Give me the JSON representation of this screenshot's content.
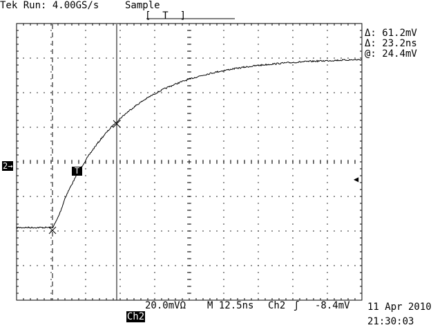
{
  "header": {
    "status": "Tek Run: 4.00GS/s",
    "mode": "Sample",
    "record_marker": "[  T  ]"
  },
  "readouts": {
    "delta_v": "Δ: 61.2mV",
    "delta_t": "Δ: 23.2ns",
    "at_v": "@: 24.4mV"
  },
  "markers": {
    "channel": "2→",
    "trigger_pos": "T",
    "trigger_level": "◀"
  },
  "footer": {
    "channel": "Ch2",
    "volts_div": "20.0mVΩ",
    "timebase": "M 12.5ns",
    "trigger_source": "Ch2",
    "trigger_slope": "ʃ",
    "trigger_level": "-8.4mV",
    "date": "11 Apr 2010",
    "time": "21:30:03"
  },
  "waveform": {
    "channel": "Ch2",
    "colors": {
      "trace": "#000000",
      "grid": "#000000",
      "background": "#ffffff"
    },
    "divisions": {
      "x": 10,
      "y": 8
    },
    "baseline_div": -1.9,
    "final_div": 3.0
  }
}
